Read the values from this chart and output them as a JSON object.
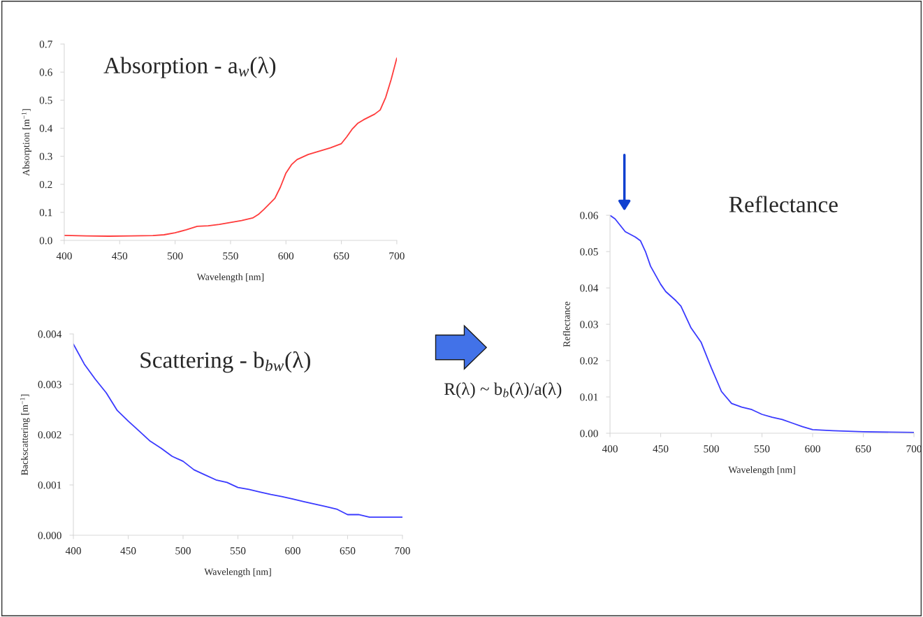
{
  "chart_data": [
    {
      "type": "line",
      "title": "Absorption - a$_{w}$(λ)",
      "xlabel": "Wavelength [nm]",
      "ylabel": "Absorption [m$^{−1}$]",
      "xlim": [
        400,
        700
      ],
      "xticks": [
        400,
        450,
        500,
        550,
        600,
        650,
        700
      ],
      "ylim": [
        0,
        0.7
      ],
      "yticks": [
        {
          "value": 0,
          "label": "0.0"
        },
        {
          "value": 0.1,
          "label": "0.1"
        },
        {
          "value": 0.2,
          "label": "0.2"
        },
        {
          "value": 0.3,
          "label": "0.3"
        },
        {
          "value": 0.4,
          "label": "0.4"
        },
        {
          "value": 0.5,
          "label": "0.5"
        },
        {
          "value": 0.6,
          "label": "0.6"
        },
        {
          "value": 0.7,
          "label": "0.7"
        }
      ],
      "grid": false,
      "legend": false,
      "series": [
        {
          "color": "#ff3b3b",
          "x": [
            400,
            420,
            440,
            460,
            480,
            490,
            500,
            510,
            520,
            530,
            540,
            550,
            560,
            570,
            575,
            580,
            590,
            595,
            600,
            605,
            610,
            620,
            630,
            640,
            650,
            655,
            660,
            665,
            670,
            680,
            685,
            690,
            695,
            700
          ],
          "values": [
            0.018,
            0.016,
            0.015,
            0.016,
            0.017,
            0.02,
            0.027,
            0.038,
            0.05,
            0.052,
            0.057,
            0.064,
            0.071,
            0.08,
            0.092,
            0.11,
            0.15,
            0.19,
            0.24,
            0.27,
            0.288,
            0.306,
            0.318,
            0.33,
            0.345,
            0.37,
            0.398,
            0.418,
            0.43,
            0.45,
            0.465,
            0.51,
            0.575,
            0.65
          ]
        }
      ]
    },
    {
      "type": "line",
      "title": "Scattering - b$_{bw}$(λ)",
      "xlabel": "Wavelength [nm]",
      "ylabel": "Backscattering [m$^{−1}$]",
      "xlim": [
        400,
        700
      ],
      "xticks": [
        400,
        450,
        500,
        550,
        600,
        650,
        700
      ],
      "ylim": [
        0,
        0.004
      ],
      "yticks": [
        {
          "value": 0,
          "label": "0.000"
        },
        {
          "value": 0.001,
          "label": "0.001"
        },
        {
          "value": 0.002,
          "label": "0.002"
        },
        {
          "value": 0.003,
          "label": "0.003"
        },
        {
          "value": 0.004,
          "label": "0.004"
        }
      ],
      "grid": false,
      "legend": false,
      "series": [
        {
          "color": "#3a3aff",
          "x": [
            400,
            410,
            420,
            430,
            440,
            450,
            460,
            470,
            480,
            490,
            500,
            510,
            520,
            530,
            540,
            550,
            560,
            570,
            580,
            590,
            600,
            610,
            620,
            630,
            640,
            650,
            660,
            670,
            680,
            690,
            700
          ],
          "values": [
            0.0038,
            0.0034,
            0.0031,
            0.00283,
            0.00248,
            0.00227,
            0.00207,
            0.00187,
            0.00173,
            0.00157,
            0.00147,
            0.0013,
            0.0012,
            0.0011,
            0.00105,
            0.00095,
            0.00091,
            0.00086,
            0.00081,
            0.00077,
            0.00072,
            0.00067,
            0.00062,
            0.00057,
            0.00052,
            0.00041,
            0.00041,
            0.00036,
            0.00036,
            0.00036,
            0.00036
          ]
        }
      ]
    },
    {
      "type": "line",
      "title": "Reflectance",
      "xlabel": "Wavelength [nm]",
      "ylabel": "Reflectance",
      "xlim": [
        400,
        700
      ],
      "xticks": [
        400,
        450,
        500,
        550,
        600,
        650,
        700
      ],
      "ylim": [
        0,
        0.06
      ],
      "yticks": [
        {
          "value": 0,
          "label": "0.00"
        },
        {
          "value": 0.01,
          "label": "0.01"
        },
        {
          "value": 0.02,
          "label": "0.02"
        },
        {
          "value": 0.03,
          "label": "0.03"
        },
        {
          "value": 0.04,
          "label": "0.04"
        },
        {
          "value": 0.05,
          "label": "0.05"
        },
        {
          "value": 0.06,
          "label": "0.06"
        }
      ],
      "grid": false,
      "legend": false,
      "annotations": [
        "R(λ) ~ b$_{b}$(λ)/a(λ)"
      ],
      "series": [
        {
          "color": "#3a3aff",
          "x": [
            400,
            405,
            415,
            425,
            430,
            435,
            440,
            450,
            455,
            465,
            470,
            480,
            490,
            500,
            510,
            520,
            530,
            540,
            550,
            560,
            570,
            580,
            590,
            600,
            620,
            650,
            700
          ],
          "values": [
            0.06,
            0.059,
            0.0555,
            0.054,
            0.053,
            0.05,
            0.046,
            0.041,
            0.039,
            0.0365,
            0.035,
            0.029,
            0.025,
            0.018,
            0.0115,
            0.0082,
            0.0072,
            0.0065,
            0.0052,
            0.0044,
            0.0038,
            0.0028,
            0.0018,
            0.001,
            0.0007,
            0.0004,
            0.0002
          ]
        }
      ]
    }
  ]
}
